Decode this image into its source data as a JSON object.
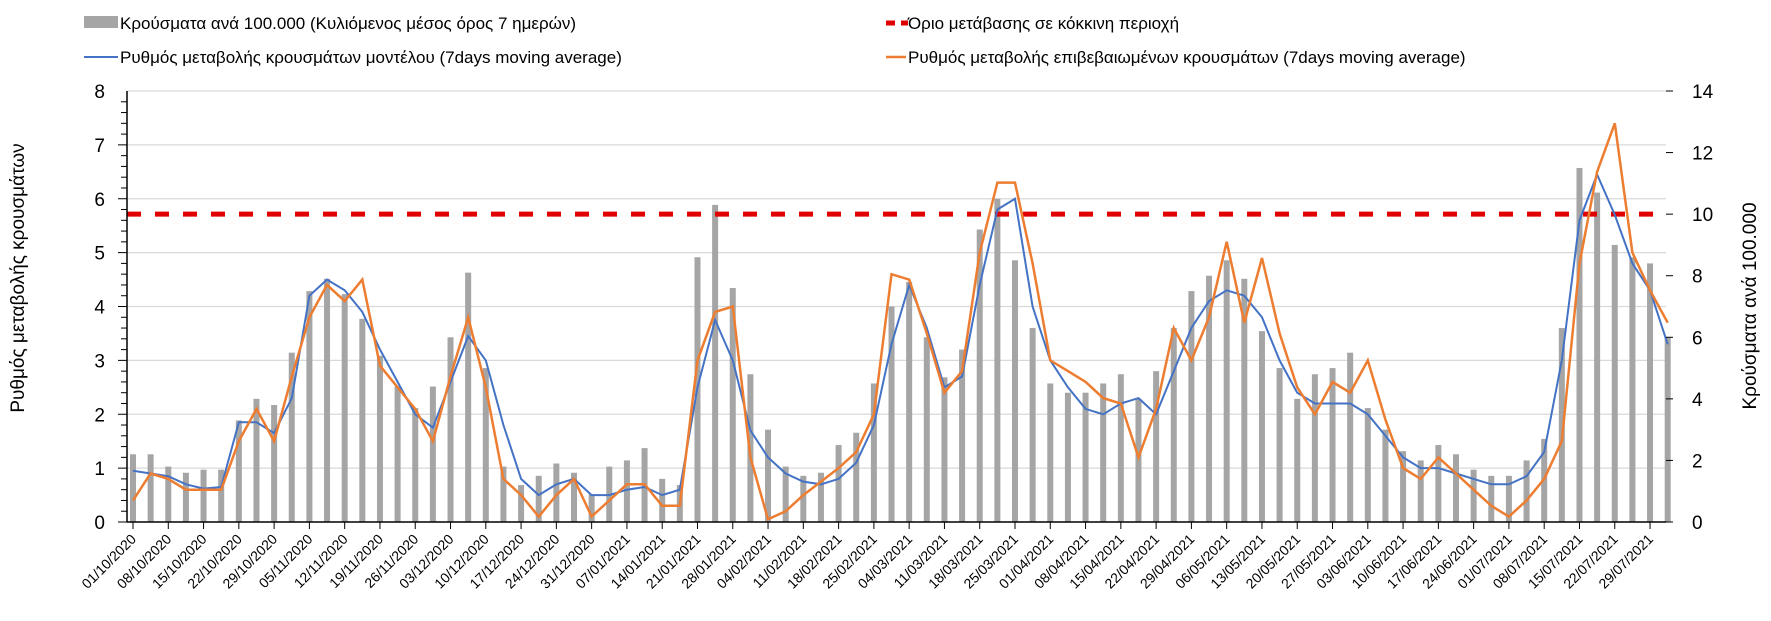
{
  "chart_data": {
    "type": "bar+line",
    "legend": {
      "bars": "Κρούσματα ανά 100.000 (Κυλιόμενος μέσος όρος 7 ημερών)",
      "threshold": "Όριο μετάβασης σε κόκκινη περιοχή",
      "model": "Ρυθμός μεταβολής κρουσμάτων μοντέλου (7days moving average)",
      "confirmed": "Ρυθμός μεταβολής επιβεβαιωμένων κρουσμάτων (7days moving average)"
    },
    "legend_placement": "top",
    "ylabel_left": "Ρυθμός μεταβολής κρουσμάτων",
    "ylabel_right": "Κρούσματα ανά 100.000",
    "ylim_left": [
      0,
      8
    ],
    "ylim_right": [
      0,
      14
    ],
    "yticks_left": [
      "0",
      "1",
      "2",
      "3",
      "4",
      "5",
      "6",
      "7",
      "8"
    ],
    "yticks_right": [
      "0",
      "2",
      "4",
      "6",
      "8",
      "10",
      "12",
      "14"
    ],
    "grid": true,
    "threshold_right_axis": 10,
    "colors": {
      "bars": "#a5a5a5",
      "model": "#4472c4",
      "confirmed": "#ed7d31",
      "threshold": "#e00000"
    },
    "x_start": "01/10/2020",
    "points_per_week": 2,
    "x_ticks": [
      "01/10/2020",
      "08/10/2020",
      "15/10/2020",
      "22/10/2020",
      "29/10/2020",
      "05/11/2020",
      "12/11/2020",
      "19/11/2020",
      "26/11/2020",
      "03/12/2020",
      "10/12/2020",
      "17/12/2020",
      "24/12/2020",
      "31/12/2020",
      "07/01/2021",
      "14/01/2021",
      "21/01/2021",
      "28/01/2021",
      "04/02/2021",
      "11/02/2021",
      "18/02/2021",
      "25/02/2021",
      "04/03/2021",
      "11/03/2021",
      "18/03/2021",
      "25/03/2021",
      "01/04/2021",
      "08/04/2021",
      "15/04/2021",
      "22/04/2021",
      "29/04/2021",
      "06/05/2021",
      "13/05/2021",
      "20/05/2021",
      "27/05/2021",
      "03/06/2021",
      "10/06/2021",
      "17/06/2021",
      "24/06/2021",
      "01/07/2021",
      "08/07/2021",
      "15/07/2021",
      "22/07/2021",
      "29/07/2021"
    ],
    "series": [
      {
        "name": "bars",
        "axis": "right",
        "values": [
          2.2,
          2.2,
          1.8,
          1.6,
          1.7,
          1.7,
          3.3,
          4.0,
          3.8,
          5.5,
          7.5,
          7.9,
          7.4,
          6.6,
          5.4,
          4.4,
          3.7,
          4.4,
          6.0,
          8.1,
          5.0,
          1.8,
          1.2,
          1.5,
          1.9,
          1.6,
          0.9,
          1.8,
          2.0,
          2.4,
          1.4,
          1.2,
          8.6,
          10.3,
          7.6,
          4.8,
          3.0,
          1.8,
          1.5,
          1.6,
          2.5,
          2.9,
          4.5,
          7.0,
          7.8,
          6.0,
          4.7,
          5.6,
          9.5,
          10.5,
          8.5,
          6.3,
          4.5,
          4.2,
          4.2,
          4.5,
          4.8,
          4.0,
          4.9,
          6.3,
          7.5,
          8.0,
          8.5,
          7.9,
          6.2,
          5.0,
          4.0,
          4.8,
          5.0,
          5.5,
          3.7,
          3.0,
          2.3,
          2.0,
          2.5,
          2.2,
          1.7,
          1.5,
          1.5,
          2.0,
          2.7,
          6.3,
          11.5,
          10.7,
          9.0,
          8.6,
          8.4,
          6.0
        ]
      },
      {
        "name": "model",
        "axis": "left",
        "values": [
          0.95,
          0.9,
          0.85,
          0.7,
          0.62,
          0.65,
          1.85,
          1.85,
          1.65,
          2.3,
          4.2,
          4.5,
          4.3,
          3.9,
          3.2,
          2.6,
          2.0,
          1.75,
          2.6,
          3.45,
          3.0,
          1.8,
          0.8,
          0.5,
          0.7,
          0.8,
          0.5,
          0.5,
          0.6,
          0.65,
          0.5,
          0.6,
          2.5,
          3.75,
          3.0,
          1.7,
          1.2,
          0.9,
          0.75,
          0.7,
          0.8,
          1.1,
          1.8,
          3.3,
          4.4,
          3.6,
          2.5,
          2.7,
          4.4,
          5.8,
          6.0,
          4.0,
          3.0,
          2.5,
          2.1,
          2.0,
          2.2,
          2.3,
          2.0,
          2.8,
          3.6,
          4.1,
          4.3,
          4.2,
          3.8,
          3.0,
          2.4,
          2.2,
          2.2,
          2.2,
          2.0,
          1.6,
          1.2,
          1.0,
          1.0,
          0.9,
          0.8,
          0.7,
          0.7,
          0.85,
          1.3,
          3.0,
          5.6,
          6.45,
          5.7,
          4.8,
          4.3,
          3.3
        ]
      },
      {
        "name": "confirmed",
        "axis": "left",
        "values": [
          0.4,
          0.9,
          0.8,
          0.6,
          0.6,
          0.6,
          1.5,
          2.1,
          1.5,
          2.7,
          3.8,
          4.4,
          4.1,
          4.5,
          2.9,
          2.5,
          2.1,
          1.5,
          2.7,
          3.8,
          2.5,
          0.8,
          0.5,
          0.1,
          0.5,
          0.8,
          0.1,
          0.4,
          0.7,
          0.7,
          0.3,
          0.3,
          3.0,
          3.9,
          4.0,
          1.2,
          0.05,
          0.2,
          0.5,
          0.75,
          1.0,
          1.3,
          2.0,
          4.6,
          4.5,
          3.5,
          2.4,
          2.8,
          5.0,
          6.3,
          6.3,
          4.8,
          3.0,
          2.8,
          2.6,
          2.3,
          2.2,
          1.2,
          2.1,
          3.6,
          3.0,
          3.8,
          5.2,
          3.7,
          4.9,
          3.5,
          2.5,
          2.0,
          2.6,
          2.4,
          3.0,
          1.9,
          1.0,
          0.8,
          1.2,
          0.9,
          0.6,
          0.3,
          0.1,
          0.4,
          0.8,
          1.5,
          4.8,
          6.5,
          7.4,
          5.0,
          4.3,
          3.7
        ]
      }
    ]
  }
}
